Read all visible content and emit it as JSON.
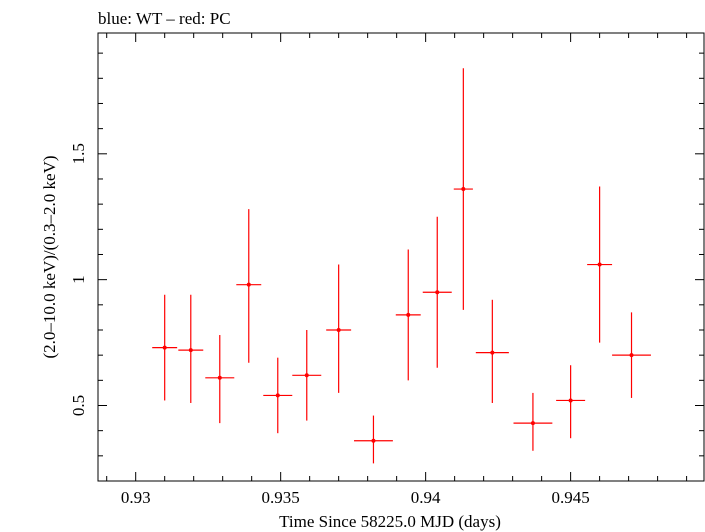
{
  "chart_data": {
    "type": "scatter",
    "title": "blue: WT – red: PC",
    "xlabel": "Time Since 58225.0 MJD (days)",
    "ylabel": "(2.0–10.0 keV)/(0.3–2.0 keV)",
    "xlim": [
      0.9287,
      0.9496
    ],
    "ylim": [
      0.2,
      1.98
    ],
    "x_ticks": [
      0.93,
      0.935,
      0.94,
      0.945
    ],
    "x_tick_labels": [
      "0.93",
      "0.935",
      "0.94",
      "0.945"
    ],
    "y_ticks": [
      0.5,
      1,
      1.5
    ],
    "y_tick_labels": [
      "0.5",
      "1",
      "1.5"
    ],
    "grid": false,
    "series": [
      {
        "color": "#ff0000",
        "points": [
          {
            "x": 0.931,
            "y": 0.73,
            "xerr": 0.00043,
            "ylo": 0.52,
            "yhi": 0.94
          },
          {
            "x": 0.9319,
            "y": 0.72,
            "xerr": 0.00043,
            "ylo": 0.51,
            "yhi": 0.94
          },
          {
            "x": 0.9329,
            "y": 0.61,
            "xerr": 0.0005,
            "ylo": 0.43,
            "yhi": 0.78
          },
          {
            "x": 0.9339,
            "y": 0.98,
            "xerr": 0.00043,
            "ylo": 0.67,
            "yhi": 1.28
          },
          {
            "x": 0.9349,
            "y": 0.54,
            "xerr": 0.0005,
            "ylo": 0.39,
            "yhi": 0.69
          },
          {
            "x": 0.9359,
            "y": 0.62,
            "xerr": 0.0005,
            "ylo": 0.44,
            "yhi": 0.8
          },
          {
            "x": 0.937,
            "y": 0.8,
            "xerr": 0.00043,
            "ylo": 0.55,
            "yhi": 1.06
          },
          {
            "x": 0.9382,
            "y": 0.36,
            "xerr": 0.00067,
            "ylo": 0.27,
            "yhi": 0.46
          },
          {
            "x": 0.9394,
            "y": 0.86,
            "xerr": 0.00043,
            "ylo": 0.6,
            "yhi": 1.12
          },
          {
            "x": 0.9404,
            "y": 0.95,
            "xerr": 0.0005,
            "ylo": 0.65,
            "yhi": 1.25
          },
          {
            "x": 0.9413,
            "y": 1.36,
            "xerr": 0.00033,
            "ylo": 0.88,
            "yhi": 1.84
          },
          {
            "x": 0.9423,
            "y": 0.71,
            "xerr": 0.00057,
            "ylo": 0.51,
            "yhi": 0.92
          },
          {
            "x": 0.9437,
            "y": 0.43,
            "xerr": 0.00067,
            "ylo": 0.32,
            "yhi": 0.55
          },
          {
            "x": 0.945,
            "y": 0.52,
            "xerr": 0.0005,
            "ylo": 0.37,
            "yhi": 0.66
          },
          {
            "x": 0.946,
            "y": 1.06,
            "xerr": 0.00043,
            "ylo": 0.75,
            "yhi": 1.37
          },
          {
            "x": 0.9471,
            "y": 0.7,
            "xerr": 0.00067,
            "ylo": 0.53,
            "yhi": 0.87
          }
        ]
      }
    ]
  }
}
